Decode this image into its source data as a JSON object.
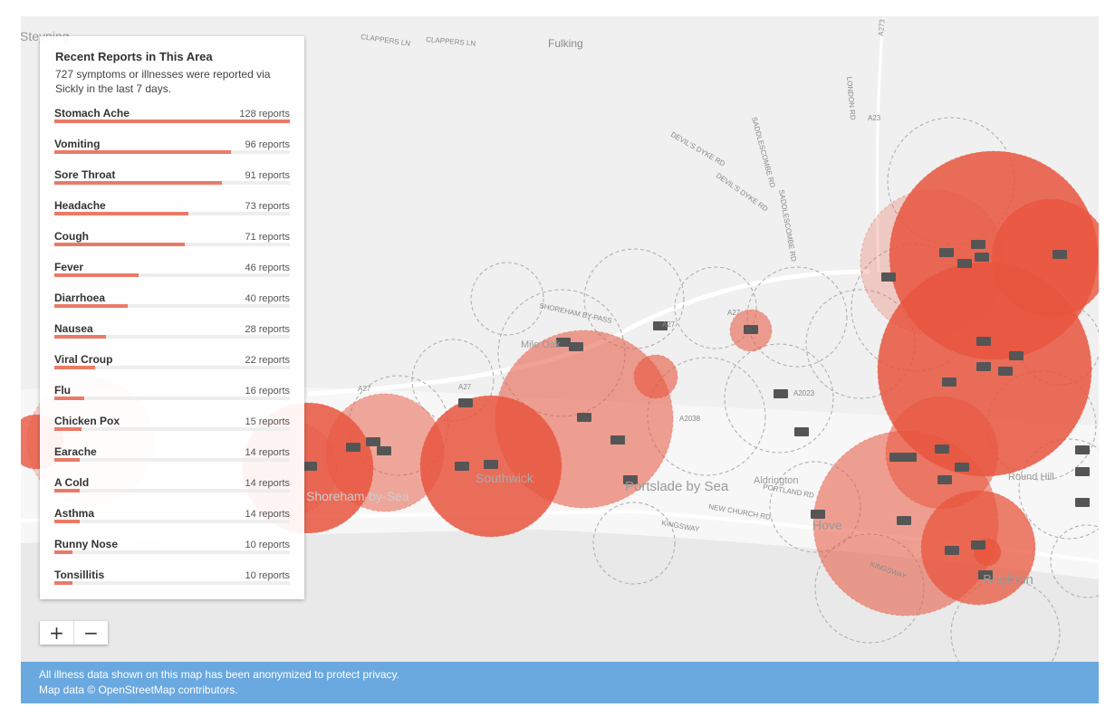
{
  "panel": {
    "title": "Recent Reports in This Area",
    "subtitle": "727 symptoms or illnesses were reported via Sickly in the last 7 days.",
    "items": [
      {
        "name": "Stomach Ache",
        "count": 128,
        "count_label": "128 reports"
      },
      {
        "name": "Vomiting",
        "count": 96,
        "count_label": "96 reports"
      },
      {
        "name": "Sore Throat",
        "count": 91,
        "count_label": "91 reports"
      },
      {
        "name": "Headache",
        "count": 73,
        "count_label": "73 reports"
      },
      {
        "name": "Cough",
        "count": 71,
        "count_label": "71 reports"
      },
      {
        "name": "Fever",
        "count": 46,
        "count_label": "46 reports"
      },
      {
        "name": "Diarrhoea",
        "count": 40,
        "count_label": "40 reports"
      },
      {
        "name": "Nausea",
        "count": 28,
        "count_label": "28 reports"
      },
      {
        "name": "Viral Croup",
        "count": 22,
        "count_label": "22 reports"
      },
      {
        "name": "Flu",
        "count": 16,
        "count_label": "16 reports"
      },
      {
        "name": "Chicken Pox",
        "count": 15,
        "count_label": "15 reports"
      },
      {
        "name": "Earache",
        "count": 14,
        "count_label": "14 reports"
      },
      {
        "name": "A Cold",
        "count": 14,
        "count_label": "14 reports"
      },
      {
        "name": "Asthma",
        "count": 14,
        "count_label": "14 reports"
      },
      {
        "name": "Runny Nose",
        "count": 10,
        "count_label": "10 reports"
      },
      {
        "name": "Tonsillitis",
        "count": 10,
        "count_label": "10 reports"
      }
    ]
  },
  "controls": {
    "zoom_in": "+",
    "zoom_out": "−"
  },
  "map_labels": [
    "Steyning",
    "CLAPPERS LN",
    "CLAPPERS LN",
    "Fulking",
    "DEVIL'S DYKE RD",
    "DEVIL'S DYKE RD",
    "SADDLESCOMBE RD",
    "SADDLESCOMBE RD",
    "LONDON RD",
    "A23",
    "A273",
    "SHOREHAM BY-PASS",
    "A27",
    "A27",
    "A27",
    "A27",
    "Mile Oak",
    "A2023",
    "A2038",
    "Southwick",
    "Portslade by Sea",
    "Aldrington",
    "PORTLAND RD",
    "NEW CHURCH RD",
    "KINGSWAY",
    "KINGSWAY",
    "Hove",
    "Brighton",
    "Round Hill",
    "Shoreham-by-Sea"
  ],
  "footer": {
    "line1": "All illness data shown on this map has been anonymized to protect privacy.",
    "line2": "Map data © OpenStreetMap contributors."
  }
}
